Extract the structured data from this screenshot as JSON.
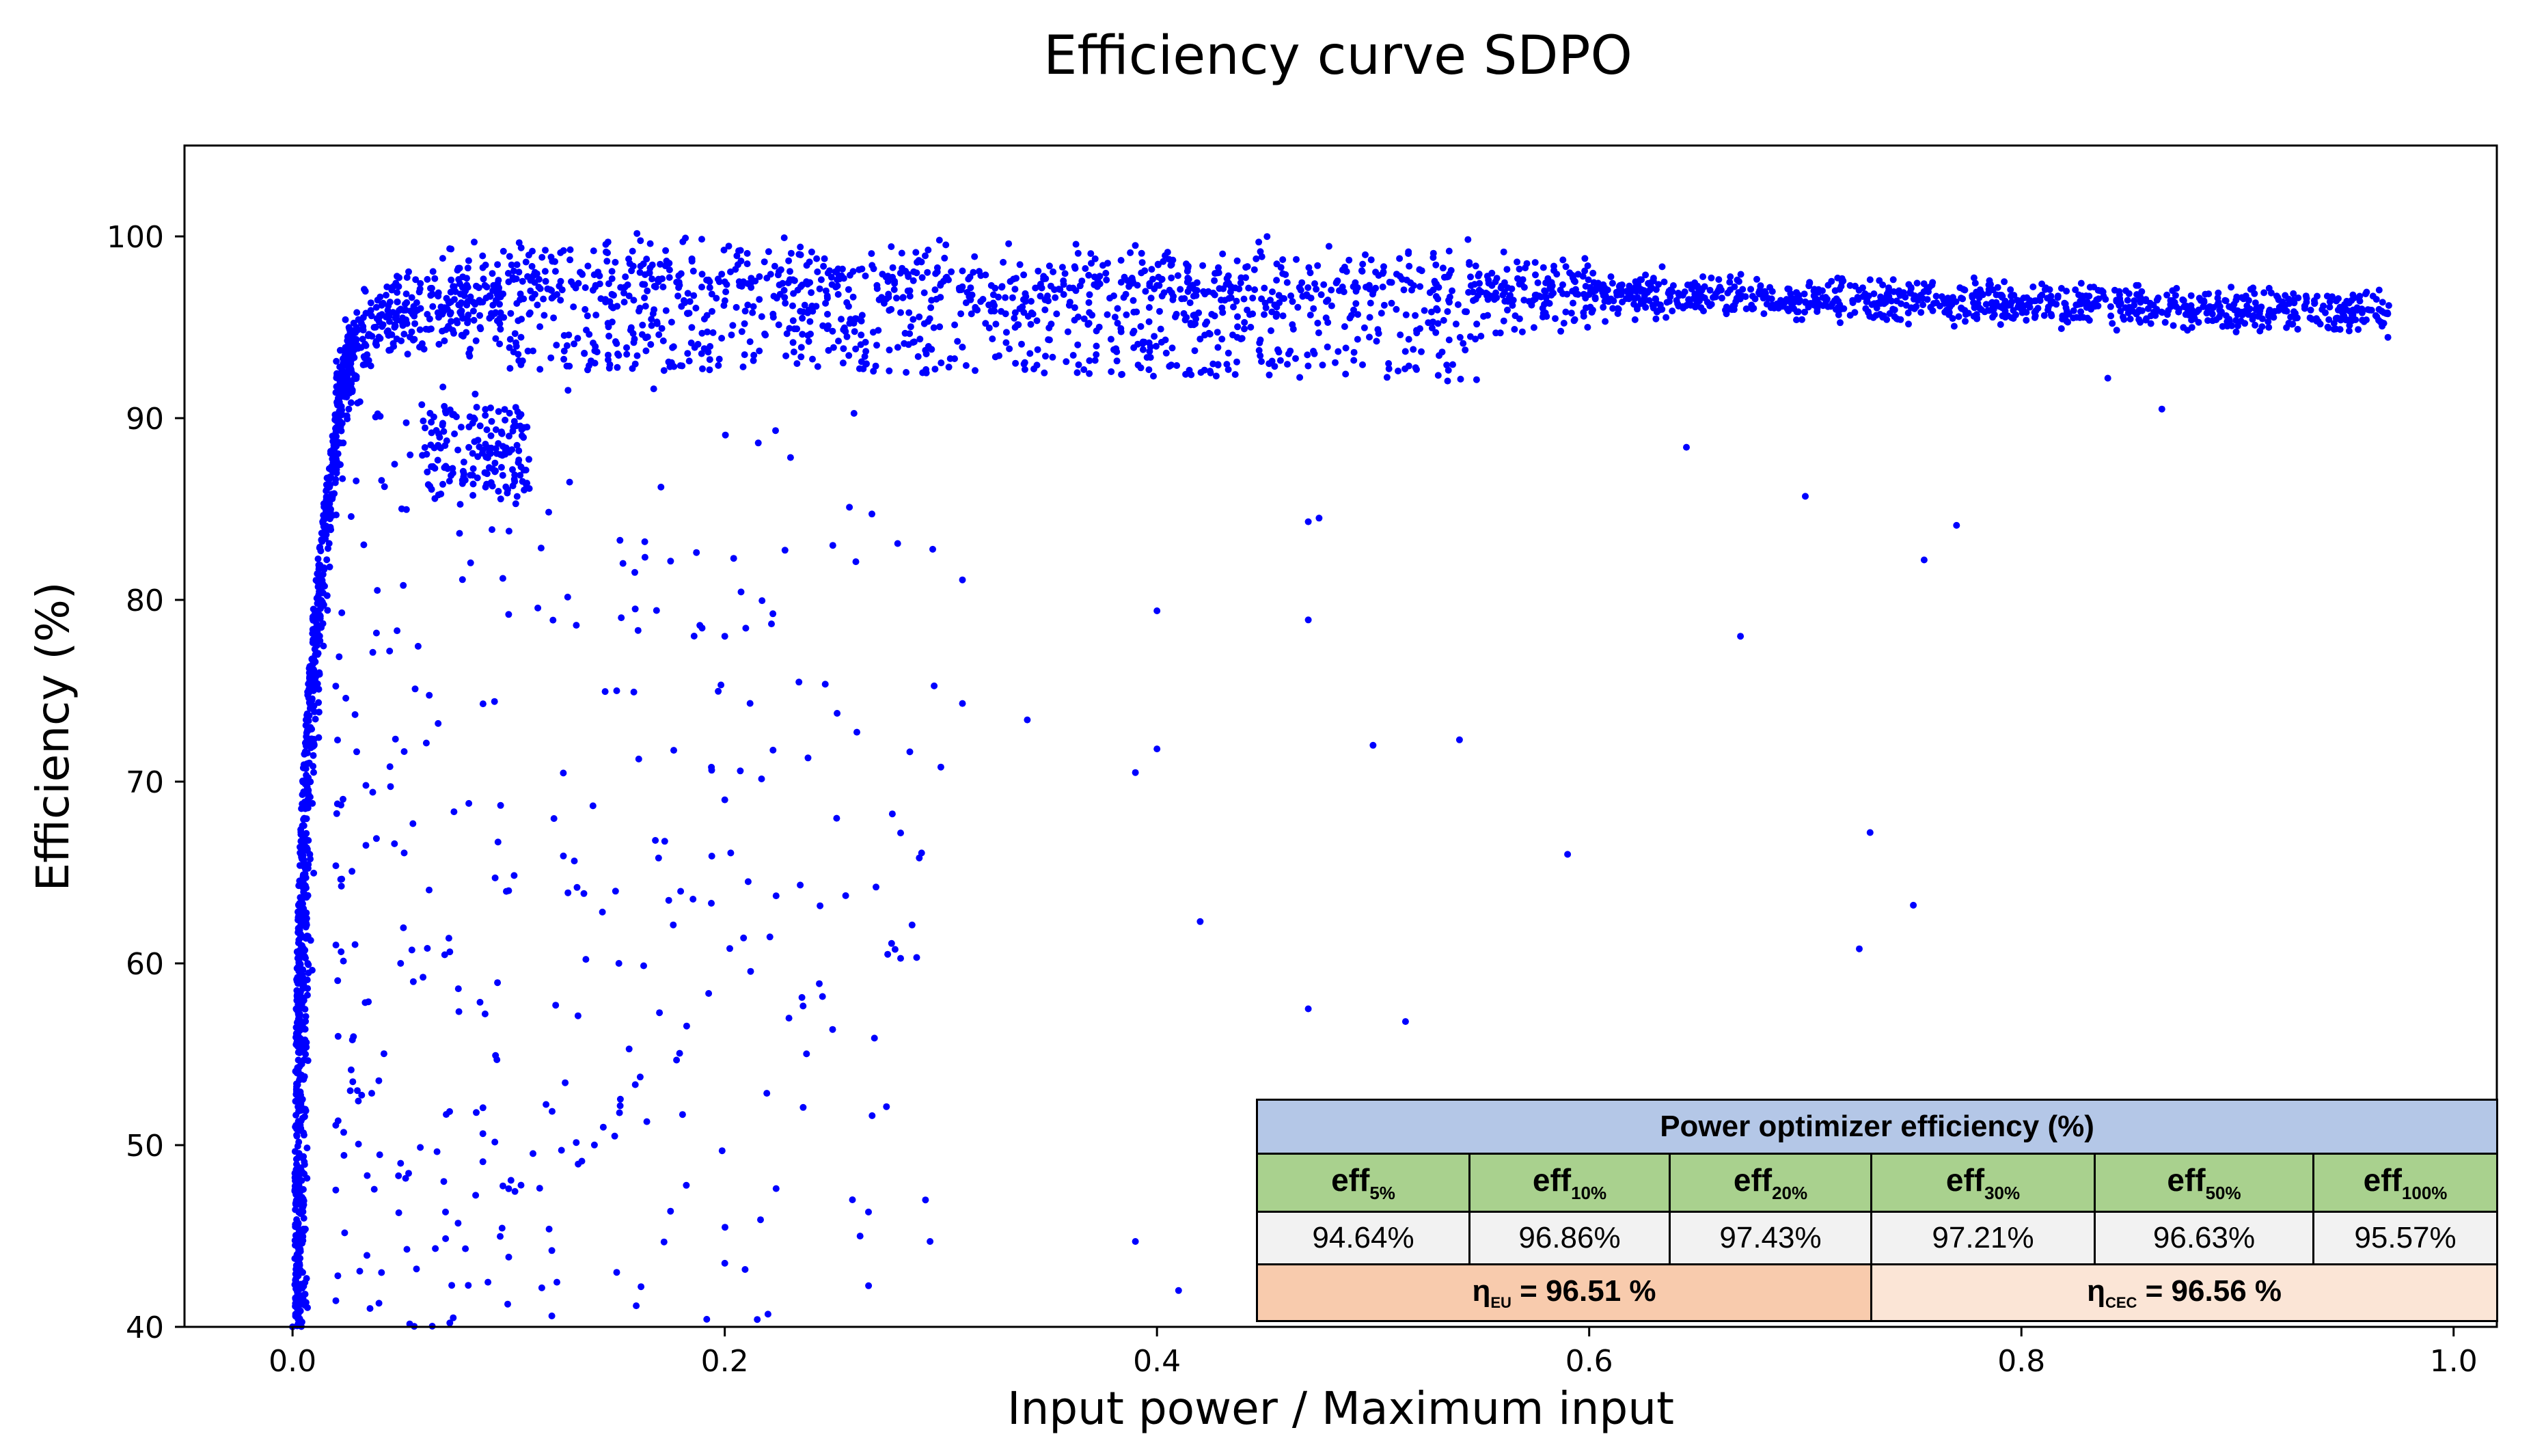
{
  "chart_data": {
    "type": "scatter",
    "title": "Efficiency curve SDPO",
    "xlabel": "Input power / Maximum input",
    "ylabel": "Efficiency (%)",
    "xlim": [
      -0.05,
      1.02
    ],
    "ylim": [
      40,
      105
    ],
    "xticks": [
      0.0,
      0.2,
      0.4,
      0.6,
      0.8,
      1.0
    ],
    "xtick_labels": [
      "0.0",
      "0.2",
      "0.4",
      "0.6",
      "0.8",
      "1.0"
    ],
    "yticks": [
      40,
      50,
      60,
      70,
      80,
      90,
      100
    ],
    "ytick_labels": [
      "40",
      "50",
      "60",
      "70",
      "80",
      "90",
      "100"
    ],
    "grid": false,
    "marker_color": "#0000ff",
    "series": [
      {
        "name": "SDPO",
        "description_note": "dense cloud ~92-99% from x≈0.03 to 0.97; steep rise near x≈0.01",
        "sample_points": [
          [
            0.0,
            40
          ],
          [
            0.003,
            45
          ],
          [
            0.005,
            52
          ],
          [
            0.006,
            55
          ],
          [
            0.007,
            60
          ],
          [
            0.008,
            66
          ],
          [
            0.01,
            72
          ],
          [
            0.012,
            78
          ],
          [
            0.015,
            84
          ],
          [
            0.02,
            90
          ],
          [
            0.03,
            94
          ],
          [
            0.05,
            96
          ],
          [
            0.08,
            97
          ],
          [
            0.1,
            97.5
          ],
          [
            0.2,
            97.5
          ],
          [
            0.3,
            97.4
          ],
          [
            0.4,
            97.3
          ],
          [
            0.5,
            97.0
          ],
          [
            0.6,
            96.8
          ],
          [
            0.7,
            96.4
          ],
          [
            0.8,
            96.0
          ],
          [
            0.9,
            95.7
          ],
          [
            0.97,
            96.2
          ],
          [
            0.39,
            44.7
          ],
          [
            0.41,
            42
          ],
          [
            0.42,
            62.3
          ],
          [
            0.295,
            44.7
          ],
          [
            0.47,
            57.5
          ],
          [
            0.515,
            56.8
          ],
          [
            0.5,
            72
          ],
          [
            0.54,
            72.3
          ],
          [
            0.59,
            66
          ],
          [
            0.725,
            60.8
          ],
          [
            0.73,
            67.2
          ],
          [
            0.75,
            63.2
          ],
          [
            0.4,
            71.8
          ],
          [
            0.39,
            70.5
          ],
          [
            0.34,
            73.4
          ],
          [
            0.29,
            65.8
          ],
          [
            0.27,
            64.2
          ],
          [
            0.31,
            74.3
          ],
          [
            0.3,
            70.8
          ],
          [
            0.4,
            79.4
          ],
          [
            0.47,
            78.9
          ],
          [
            0.67,
            78
          ],
          [
            0.755,
            82.2
          ],
          [
            0.77,
            84.1
          ],
          [
            0.47,
            84.3
          ],
          [
            0.475,
            84.5
          ],
          [
            0.7,
            85.7
          ],
          [
            0.28,
            83.1
          ],
          [
            0.31,
            81.1
          ],
          [
            0.645,
            88.4
          ],
          [
            0.865,
            90.5
          ],
          [
            0.84,
            92.2
          ],
          [
            0.08,
            44.3
          ],
          [
            0.12,
            44.2
          ],
          [
            0.15,
            43
          ],
          [
            0.2,
            43.5
          ],
          [
            0.22,
            40.7
          ],
          [
            0.12,
            40.6
          ],
          [
            0.04,
            41.3
          ],
          [
            0.05,
            49
          ],
          [
            0.07,
            48
          ],
          [
            0.1,
            47.6
          ],
          [
            0.03,
            53
          ],
          [
            0.05,
            60
          ],
          [
            0.1,
            64
          ],
          [
            0.2,
            69
          ],
          [
            0.15,
            75
          ],
          [
            0.1,
            79.2
          ],
          [
            0.2,
            78
          ],
          [
            0.25,
            83
          ]
        ]
      }
    ]
  },
  "table": {
    "title": "Power optimizer efficiency (%)",
    "headers": [
      {
        "base": "eff",
        "sub": "5%"
      },
      {
        "base": "eff",
        "sub": "10%"
      },
      {
        "base": "eff",
        "sub": "20%"
      },
      {
        "base": "eff",
        "sub": "30%"
      },
      {
        "base": "eff",
        "sub": "50%"
      },
      {
        "base": "eff",
        "sub": "100%"
      }
    ],
    "values": [
      "94.64%",
      "96.86%",
      "97.43%",
      "97.21%",
      "96.63%",
      "95.57%"
    ],
    "eta_eu": {
      "symbol": "η",
      "sub": "EU",
      "text": " = 96.51 %"
    },
    "eta_cec": {
      "symbol": "η",
      "sub": "CEC",
      "text": " = 96.56 %"
    },
    "colors": {
      "title_bg": "#b4c7e7",
      "header_bg": "#a9d18e",
      "values_bg": "#f2f2f2",
      "eu_bg": "#f8cbad",
      "cec_bg": "#fbe5d6"
    }
  }
}
